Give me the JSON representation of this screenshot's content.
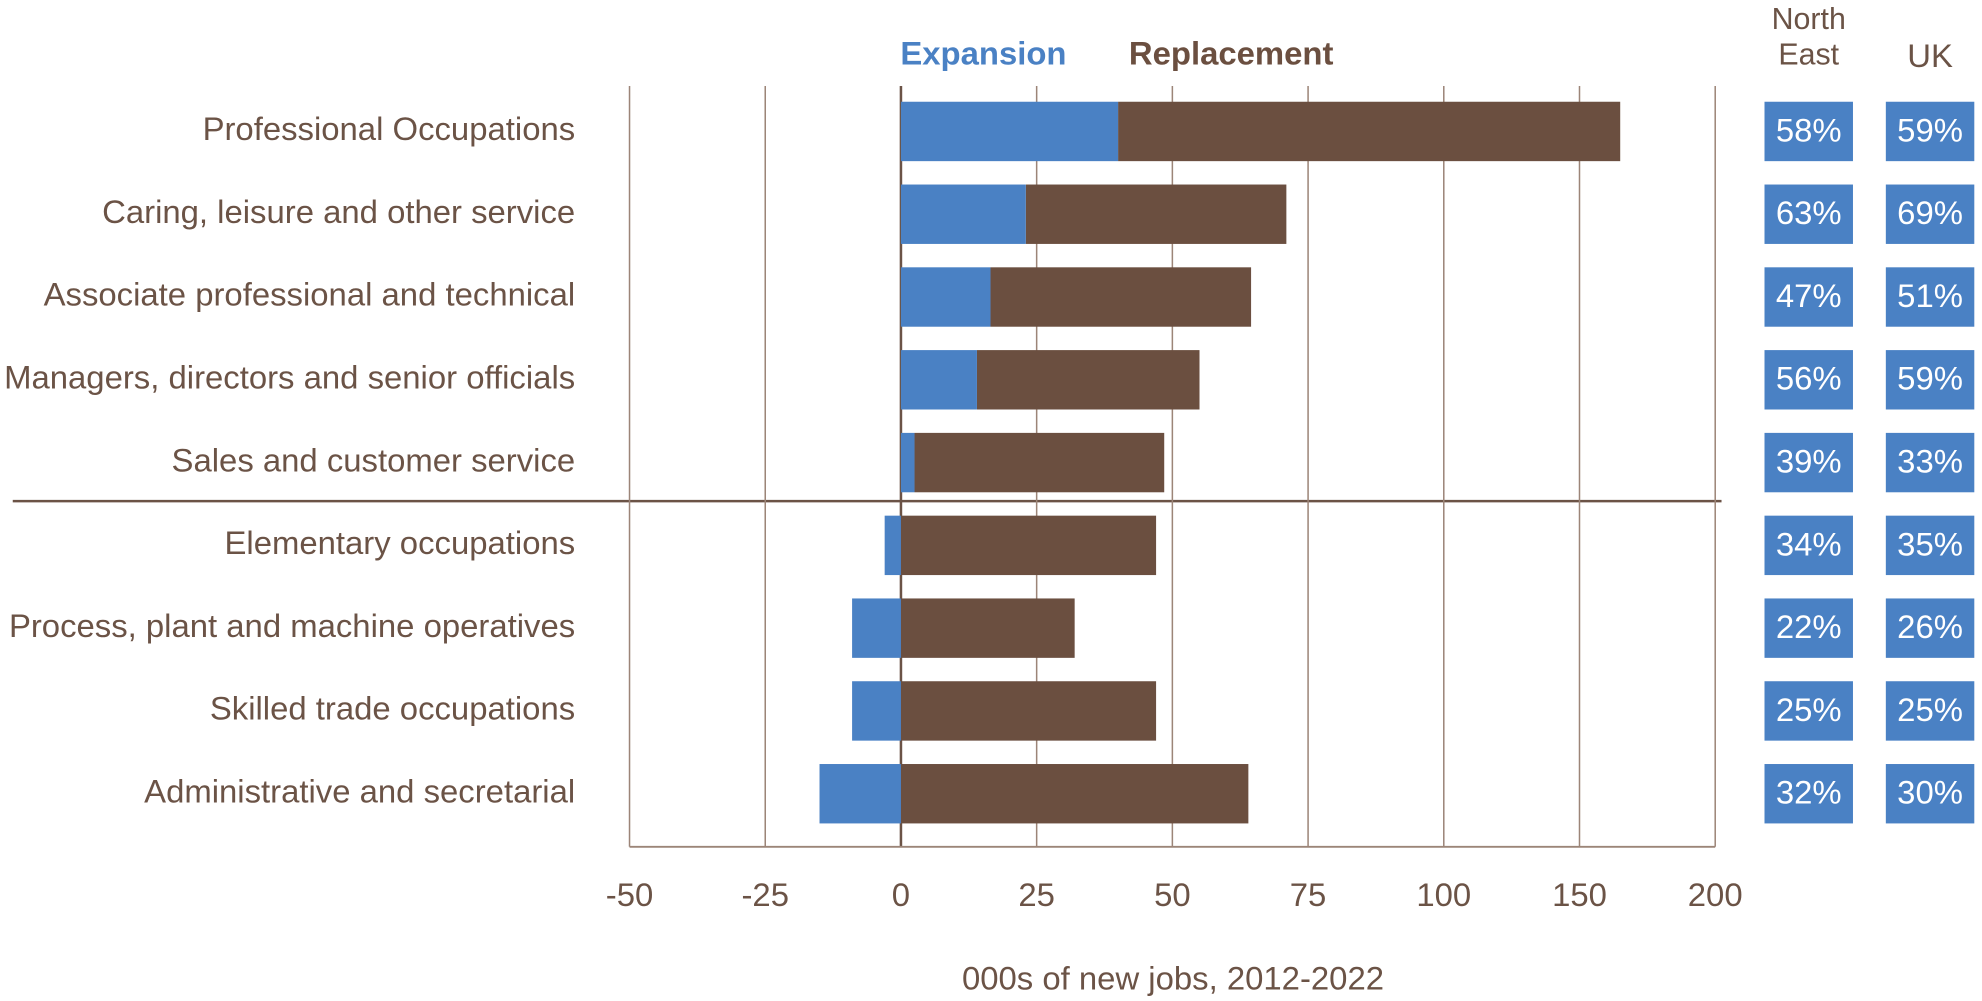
{
  "chart_data": {
    "type": "bar",
    "categories": [
      "Professional Occupations",
      "Caring, leisure and other service",
      "Associate professional and technical",
      "Managers, directors and senior officials",
      "Sales and customer service",
      "Elementary occupations",
      "Process, plant and machine operatives",
      "Skilled trade occupations",
      "Administrative and secretarial"
    ],
    "series": [
      {
        "name": "Expansion",
        "color": "#4a81c4",
        "values": [
          40,
          23,
          16.5,
          14,
          2.5,
          -3,
          -9,
          -9,
          -15
        ]
      },
      {
        "name": "Replacement",
        "color": "#6b4f40",
        "values": [
          125,
          48,
          48,
          41,
          46,
          47,
          32,
          47,
          64
        ]
      }
    ],
    "xlabel": "000s of new jobs, 2012-2022",
    "xlim": [
      -50,
      200
    ],
    "xticks": [
      -50,
      -25,
      0,
      25,
      50,
      75,
      100,
      150,
      200
    ],
    "shares": [
      {
        "name": "North East",
        "color": "#4a81c4",
        "values": [
          58,
          63,
          47,
          56,
          39,
          34,
          22,
          25,
          32
        ],
        "value_labels": [
          "58%",
          "63%",
          "47%",
          "56%",
          "39%",
          "34%",
          "22%",
          "25%",
          "32%"
        ]
      },
      {
        "name": "UK",
        "color": "#4a81c4",
        "values": [
          59,
          69,
          51,
          59,
          33,
          35,
          26,
          25,
          30
        ],
        "value_labels": [
          "59%",
          "69%",
          "51%",
          "59%",
          "33%",
          "35%",
          "26%",
          "25%",
          "30%"
        ]
      }
    ]
  }
}
